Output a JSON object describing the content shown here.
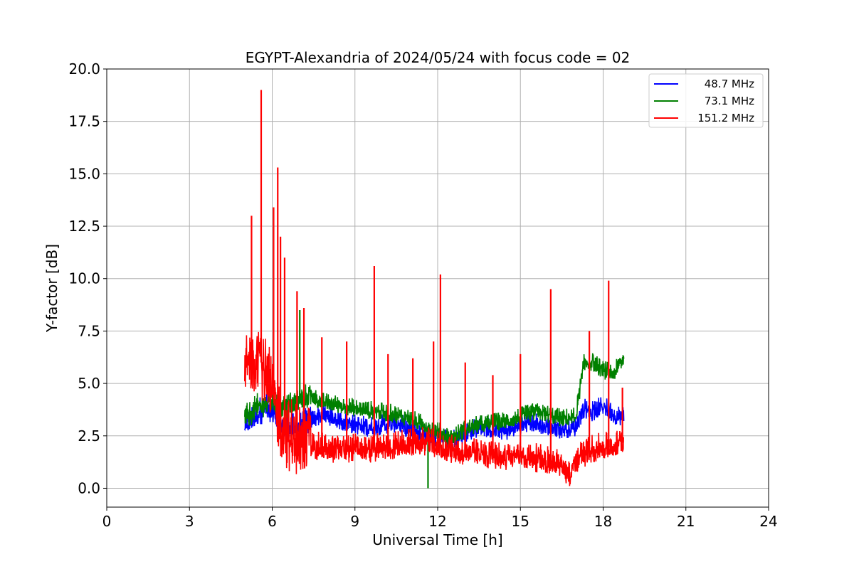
{
  "chart_data": {
    "type": "line",
    "title": "EGYPT-Alexandria of 2024/05/24 with focus code = 02",
    "xlabel": "Universal Time [h]",
    "ylabel": "Y-factor [dB]",
    "xlim": [
      0,
      24
    ],
    "ylim": [
      -0.9,
      20.0
    ],
    "xticks": [
      0,
      3,
      6,
      9,
      12,
      15,
      18,
      21,
      24
    ],
    "xtick_labels": [
      "0",
      "3",
      "6",
      "9",
      "12",
      "15",
      "18",
      "21",
      "24"
    ],
    "yticks": [
      0.0,
      2.5,
      5.0,
      7.5,
      10.0,
      12.5,
      15.0,
      17.5,
      20.0
    ],
    "ytick_labels": [
      "0.0",
      "2.5",
      "5.0",
      "7.5",
      "10.0",
      "12.5",
      "15.0",
      "17.5",
      "20.0"
    ],
    "grid": true,
    "legend_position": "top-right",
    "series": [
      {
        "name": "48.7 MHz",
        "color": "#0000ff",
        "x": [
          5.0,
          5.2,
          5.5,
          5.8,
          6.0,
          6.3,
          6.6,
          7.0,
          7.4,
          7.8,
          8.2,
          8.6,
          9.0,
          9.5,
          10.0,
          10.5,
          11.0,
          11.5,
          12.0,
          12.5,
          13.0,
          13.5,
          14.0,
          14.5,
          15.0,
          15.5,
          16.0,
          16.5,
          17.0,
          17.3,
          17.6,
          18.0,
          18.4,
          18.75
        ],
        "y": [
          3.0,
          3.2,
          3.6,
          3.8,
          3.5,
          3.0,
          2.8,
          2.9,
          3.2,
          3.5,
          3.4,
          3.1,
          3.0,
          2.9,
          3.0,
          3.1,
          2.8,
          2.5,
          2.4,
          2.3,
          2.6,
          2.9,
          2.8,
          2.7,
          3.0,
          3.1,
          2.9,
          2.8,
          2.9,
          3.8,
          3.6,
          3.9,
          3.5,
          3.4
        ]
      },
      {
        "name": "73.1 MHz",
        "color": "#008000",
        "x": [
          5.0,
          5.2,
          5.5,
          5.8,
          6.0,
          6.3,
          6.6,
          7.0,
          7.4,
          7.8,
          8.2,
          8.6,
          9.0,
          9.5,
          10.0,
          10.5,
          11.0,
          11.5,
          12.0,
          12.5,
          13.0,
          13.5,
          14.0,
          14.5,
          15.0,
          15.5,
          16.0,
          16.5,
          17.0,
          17.3,
          17.6,
          18.0,
          18.4,
          18.75
        ],
        "y": [
          3.3,
          3.5,
          3.9,
          4.0,
          4.1,
          3.8,
          3.9,
          4.2,
          4.4,
          4.1,
          4.0,
          3.9,
          3.8,
          3.7,
          3.6,
          3.5,
          3.3,
          3.0,
          2.7,
          2.4,
          2.8,
          3.0,
          3.1,
          3.2,
          3.4,
          3.6,
          3.5,
          3.3,
          3.4,
          5.9,
          6.0,
          5.6,
          5.5,
          6.2
        ],
        "spikes": [
          {
            "x": 7.0,
            "y": 8.5
          },
          {
            "x": 11.65,
            "y": 0.0
          }
        ]
      },
      {
        "name": "151.2 MHz",
        "color": "#ff0000",
        "x": [
          5.0,
          5.2,
          5.5,
          5.8,
          6.0,
          6.3,
          6.6,
          7.0,
          7.4,
          7.8,
          8.2,
          8.6,
          9.0,
          9.5,
          10.0,
          10.5,
          11.0,
          11.5,
          12.0,
          12.5,
          13.0,
          13.5,
          14.0,
          14.5,
          15.0,
          15.5,
          16.0,
          16.5,
          16.8,
          17.0,
          17.5,
          18.0,
          18.4,
          18.75
        ],
        "y": [
          5.5,
          6.0,
          6.5,
          5.0,
          4.5,
          3.0,
          2.4,
          2.2,
          2.0,
          1.9,
          1.8,
          1.8,
          1.9,
          1.8,
          1.9,
          2.0,
          2.1,
          2.2,
          2.0,
          1.8,
          1.7,
          1.6,
          1.5,
          1.5,
          1.5,
          1.4,
          1.3,
          1.1,
          0.5,
          1.3,
          1.8,
          1.9,
          2.0,
          2.2
        ],
        "spikes": [
          {
            "x": 5.6,
            "y": 19.0
          },
          {
            "x": 5.25,
            "y": 13.0
          },
          {
            "x": 6.2,
            "y": 15.3
          },
          {
            "x": 6.05,
            "y": 13.4
          },
          {
            "x": 6.3,
            "y": 12.0
          },
          {
            "x": 6.45,
            "y": 11.0
          },
          {
            "x": 6.9,
            "y": 9.4
          },
          {
            "x": 7.15,
            "y": 8.6
          },
          {
            "x": 7.8,
            "y": 7.2
          },
          {
            "x": 8.7,
            "y": 7.0
          },
          {
            "x": 9.7,
            "y": 10.6
          },
          {
            "x": 10.2,
            "y": 6.4
          },
          {
            "x": 11.1,
            "y": 6.2
          },
          {
            "x": 11.85,
            "y": 7.0
          },
          {
            "x": 12.1,
            "y": 10.2
          },
          {
            "x": 13.0,
            "y": 6.0
          },
          {
            "x": 14.0,
            "y": 5.4
          },
          {
            "x": 15.0,
            "y": 6.4
          },
          {
            "x": 16.1,
            "y": 9.5
          },
          {
            "x": 17.5,
            "y": 7.5
          },
          {
            "x": 18.2,
            "y": 9.9
          },
          {
            "x": 18.7,
            "y": 4.8
          }
        ]
      }
    ]
  }
}
